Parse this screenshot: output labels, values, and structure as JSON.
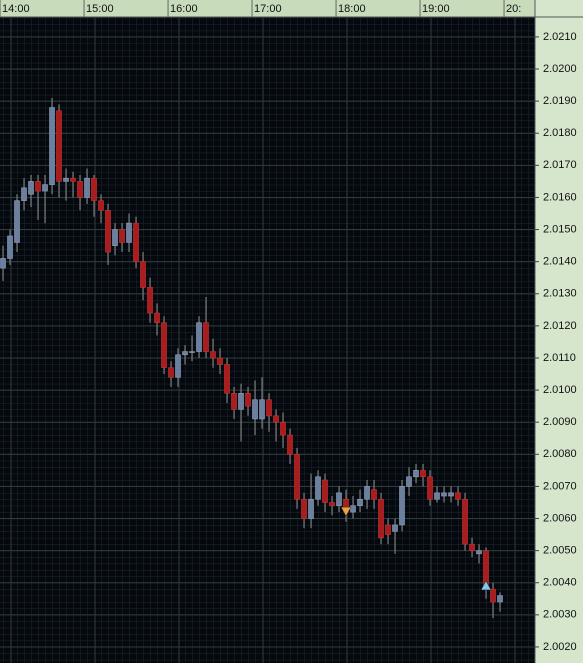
{
  "chart_data": {
    "type": "candlestick",
    "open": [
      2.0138,
      2.0141,
      2.0146,
      2.0159,
      2.0161,
      2.0165,
      2.0162,
      2.0164,
      2.0187,
      2.0165,
      2.0166,
      2.0165,
      2.016,
      2.0166,
      2.0159,
      2.0156,
      2.0145,
      2.015,
      2.0146,
      2.0152,
      2.014,
      2.0132,
      2.0124,
      2.0121,
      2.0107,
      2.0104,
      2.0111,
      2.0112,
      2.0112,
      2.0121,
      2.0112,
      2.011,
      2.0108,
      2.0099,
      2.0094,
      2.0099,
      2.0091,
      2.0091,
      2.0097,
      2.0092,
      2.009,
      2.0086,
      2.008,
      2.0066,
      2.006,
      2.0066,
      2.0072,
      2.0065,
      2.0064,
      2.0066,
      2.0062,
      2.0064,
      2.0066,
      2.0069,
      2.0066,
      2.0058,
      2.0056,
      2.0058,
      2.007,
      2.0073,
      2.0075,
      2.0073,
      2.0066,
      2.0067,
      2.0067,
      2.0068,
      2.0066,
      2.0052,
      2.0049,
      2.005,
      2.0038,
      2.0034
    ],
    "high": [
      2.0145,
      2.015,
      2.0161,
      2.0166,
      2.0167,
      2.0167,
      2.0167,
      2.0191,
      2.0189,
      2.0169,
      2.0168,
      2.0167,
      2.0169,
      2.0167,
      2.0161,
      2.0158,
      2.0152,
      2.0152,
      2.0155,
      2.0154,
      2.0143,
      2.0135,
      2.0127,
      2.0123,
      2.0109,
      2.0113,
      2.0114,
      2.0117,
      2.0123,
      2.0129,
      2.0116,
      2.0113,
      2.011,
      2.0101,
      2.0102,
      2.0101,
      2.0103,
      2.0104,
      2.0099,
      2.0094,
      2.0093,
      2.0088,
      2.0082,
      2.0068,
      2.0074,
      2.0075,
      2.0074,
      2.0067,
      2.007,
      2.0069,
      2.0067,
      2.0069,
      2.0072,
      2.0072,
      2.0068,
      2.006,
      2.006,
      2.0072,
      2.0076,
      2.0077,
      2.0077,
      2.0075,
      2.007,
      2.007,
      2.007,
      2.007,
      2.0068,
      2.0054,
      2.0052,
      2.0051,
      2.004,
      2.0037
    ],
    "low": [
      2.0134,
      2.0139,
      2.0143,
      2.0156,
      2.0157,
      2.0153,
      2.0152,
      2.0161,
      2.016,
      2.0159,
      2.016,
      2.0156,
      2.0158,
      2.0154,
      2.0152,
      2.0139,
      2.0142,
      2.0143,
      2.0143,
      2.0138,
      2.0128,
      2.0121,
      2.0117,
      2.0105,
      2.0101,
      2.0101,
      2.0108,
      2.0109,
      2.011,
      2.011,
      2.0107,
      2.0105,
      2.0096,
      2.0091,
      2.0084,
      2.0092,
      2.0086,
      2.0088,
      2.0087,
      2.0084,
      2.0082,
      2.0077,
      2.0063,
      2.0057,
      2.0057,
      2.0064,
      2.0062,
      2.0061,
      2.0062,
      2.0059,
      2.006,
      2.0062,
      2.0063,
      2.0063,
      2.0052,
      2.0052,
      2.0049,
      2.0056,
      2.0067,
      2.0071,
      2.007,
      2.0064,
      2.0065,
      2.0065,
      2.0065,
      2.0064,
      2.005,
      2.0048,
      2.0046,
      2.0035,
      2.0029,
      2.0031
    ],
    "close": [
      2.0141,
      2.0148,
      2.0159,
      2.0163,
      2.0165,
      2.0162,
      2.0164,
      2.0188,
      2.0165,
      2.0166,
      2.0165,
      2.016,
      2.0166,
      2.0159,
      2.0156,
      2.0143,
      2.015,
      2.0146,
      2.0152,
      2.014,
      2.0132,
      2.0124,
      2.0121,
      2.0107,
      2.0104,
      2.0111,
      2.0112,
      2.0112,
      2.0121,
      2.0112,
      2.011,
      2.0108,
      2.0099,
      2.0094,
      2.0099,
      2.0095,
      2.0097,
      2.0097,
      2.0092,
      2.009,
      2.0086,
      2.008,
      2.0066,
      2.006,
      2.0066,
      2.0073,
      2.0065,
      2.0064,
      2.0068,
      2.0062,
      2.0064,
      2.0066,
      2.007,
      2.0066,
      2.0054,
      2.0055,
      2.0058,
      2.007,
      2.0073,
      2.0075,
      2.0073,
      2.0066,
      2.0068,
      2.0068,
      2.0068,
      2.0066,
      2.0052,
      2.005,
      2.005,
      2.0038,
      2.0034,
      2.0036
    ],
    "up_color": "#6b7f9e",
    "down_color": "#a81e1e",
    "markers": [
      {
        "x": 49,
        "y": 2.0062,
        "direction": "down",
        "color": "#f0a040"
      },
      {
        "x": 69,
        "y": 2.0039,
        "direction": "up",
        "color": "#7ec8f0"
      }
    ],
    "xlim": [
      -0.43,
      76
    ],
    "xticks": [
      {
        "value": 1.15,
        "label": "14:00"
      },
      {
        "value": 13.15,
        "label": "15:00"
      },
      {
        "value": 25.15,
        "label": "16:00"
      },
      {
        "value": 37.15,
        "label": "17:00"
      },
      {
        "value": 49.15,
        "label": "18:00"
      },
      {
        "value": 61.15,
        "label": "19:00"
      },
      {
        "value": 73.15,
        "label": "20:"
      }
    ],
    "ylim": [
      2.0015,
      2.02162
    ],
    "yticks": [
      {
        "value": 2.002,
        "label": "2.0020"
      },
      {
        "value": 2.003,
        "label": "2.0030"
      },
      {
        "value": 2.004,
        "label": "2.0040"
      },
      {
        "value": 2.005,
        "label": "2.0050"
      },
      {
        "value": 2.006,
        "label": "2.0060"
      },
      {
        "value": 2.007,
        "label": "2.0070"
      },
      {
        "value": 2.008,
        "label": "2.0080"
      },
      {
        "value": 2.009,
        "label": "2.0090"
      },
      {
        "value": 2.01,
        "label": "2.0100"
      },
      {
        "value": 2.011,
        "label": "2.0110"
      },
      {
        "value": 2.012,
        "label": "2.0120"
      },
      {
        "value": 2.013,
        "label": "2.0130"
      },
      {
        "value": 2.014,
        "label": "2.0140"
      },
      {
        "value": 2.015,
        "label": "2.0150"
      },
      {
        "value": 2.016,
        "label": "2.0160"
      },
      {
        "value": 2.017,
        "label": "2.0170"
      },
      {
        "value": 2.018,
        "label": "2.0180"
      },
      {
        "value": 2.019,
        "label": "2.0190"
      },
      {
        "value": 2.02,
        "label": "2.0200"
      },
      {
        "value": 2.021,
        "label": "2.0210"
      }
    ],
    "grid": true
  }
}
